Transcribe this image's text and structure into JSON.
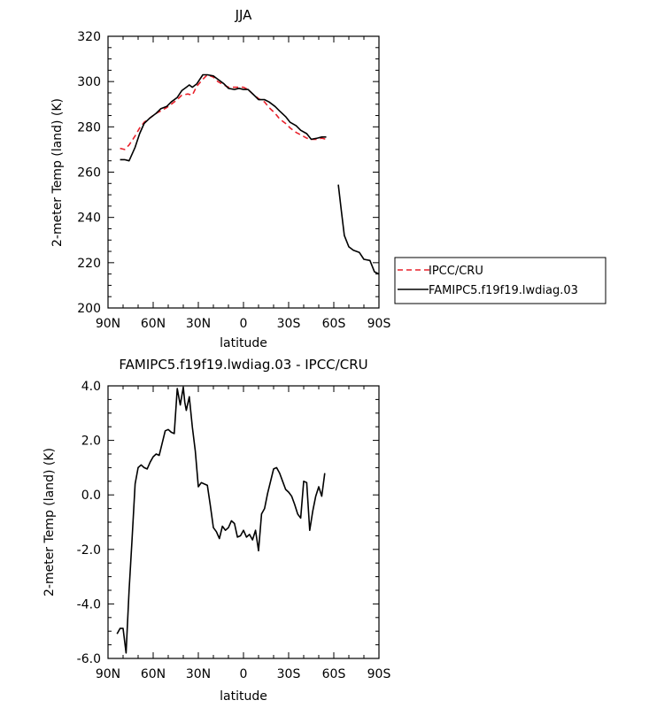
{
  "chart_data": [
    {
      "type": "line",
      "title": "JJA",
      "xlabel": "latitude",
      "ylabel": "2-meter Temp (land) (K)",
      "xlim": [
        90,
        -90
      ],
      "ylim": [
        200,
        320
      ],
      "x_ticks": [
        90,
        60,
        30,
        0,
        -30,
        -60,
        -90
      ],
      "x_tick_labels": [
        "90N",
        "60N",
        "30N",
        "0",
        "30S",
        "60S",
        "90S"
      ],
      "y_ticks": [
        200,
        220,
        240,
        260,
        280,
        300,
        320
      ],
      "y_tick_labels": [
        "200",
        "220",
        "240",
        "260",
        "280",
        "300",
        "320"
      ],
      "legend_position": "outside-right",
      "series": [
        {
          "name": "IPCC/CRU",
          "style": "dashed",
          "color": "#e8202a",
          "x": [
            82,
            79,
            76,
            72,
            69,
            66,
            62,
            58,
            55,
            51,
            48,
            44,
            41,
            37,
            34,
            31,
            27,
            24,
            20,
            17,
            13,
            10,
            6,
            3,
            0,
            -3,
            -7,
            -10,
            -14,
            -17,
            -21,
            -24,
            -28,
            -31,
            -35,
            -38,
            -42,
            -45,
            -49,
            -52,
            -55
          ],
          "y": [
            270.5,
            270,
            272,
            276,
            279.5,
            282,
            284,
            286,
            287,
            288.5,
            290,
            292,
            294,
            294.5,
            294,
            298,
            301,
            303,
            302,
            300,
            298.5,
            297.5,
            297.5,
            297.5,
            297.5,
            296.5,
            294,
            292.5,
            291,
            288.5,
            286,
            283.5,
            281.5,
            279.5,
            277.5,
            276.5,
            275,
            274.5,
            274.5,
            275,
            274.5
          ]
        },
        {
          "name": "FAMIPC5.f19f19.lwdiag.03",
          "style": "solid",
          "color": "#000000",
          "x": [
            82,
            79,
            76,
            72,
            69,
            66,
            62,
            58,
            55,
            51,
            48,
            44,
            41,
            38,
            36,
            34,
            31,
            27,
            24,
            20,
            17,
            13,
            10,
            6,
            3,
            0,
            -3,
            -7,
            -10,
            -14,
            -17,
            -21,
            -24,
            -28,
            -31,
            -35,
            -38,
            -42,
            -45,
            -49,
            -52,
            -55,
            null,
            -63,
            -65,
            -67,
            -70,
            -73,
            -77,
            -80,
            -84,
            -87,
            -90
          ],
          "y": [
            265.5,
            265.5,
            265,
            271,
            277,
            281.5,
            284,
            286,
            288,
            289,
            291,
            293,
            296,
            297.5,
            298.5,
            297.5,
            299,
            303,
            303,
            302.5,
            301,
            299,
            297,
            296.5,
            297,
            296.5,
            296.5,
            294,
            292,
            292,
            291,
            289,
            287,
            284.5,
            282,
            280.5,
            278.5,
            277,
            274.5,
            275,
            275.5,
            275.5,
            null,
            254.5,
            243,
            232,
            227,
            225.5,
            224.5,
            221.5,
            221,
            216,
            215
          ]
        }
      ]
    },
    {
      "type": "line",
      "title": "FAMIPC5.f19f19.lwdiag.03 - IPCC/CRU",
      "xlabel": "latitude",
      "ylabel": "2-meter Temp (land) (K)",
      "xlim": [
        90,
        -90
      ],
      "ylim": [
        -6,
        4
      ],
      "x_ticks": [
        90,
        60,
        30,
        0,
        -30,
        -60,
        -90
      ],
      "x_tick_labels": [
        "90N",
        "60N",
        "30N",
        "0",
        "30S",
        "60S",
        "90S"
      ],
      "y_ticks": [
        -6,
        -4,
        -2,
        0,
        2,
        4
      ],
      "y_tick_labels": [
        "-6.0",
        "-4.0",
        "-2.0",
        "0.0",
        "2.0",
        "4.0"
      ],
      "series": [
        {
          "style": "solid",
          "color": "#000000",
          "x": [
            84,
            82,
            80,
            78,
            76,
            74,
            72,
            70,
            68,
            66,
            64,
            62,
            60,
            58,
            56,
            54,
            52,
            50,
            48,
            46,
            44,
            42,
            40,
            39,
            38,
            36,
            34,
            32,
            30,
            28,
            26,
            24,
            22,
            20,
            18,
            16,
            14,
            12,
            10,
            8,
            6,
            4,
            2,
            0,
            -2,
            -4,
            -6,
            -8,
            -10,
            -12,
            -14,
            -16,
            -18,
            -20,
            -22,
            -24,
            -26,
            -28,
            -30,
            -32,
            -34,
            -36,
            -38,
            -40,
            -42,
            -44,
            -46,
            -48,
            -50,
            -52,
            -54
          ],
          "y": [
            -5.1,
            -4.9,
            -4.9,
            -5.8,
            -3.5,
            -1.6,
            0.4,
            1.0,
            1.1,
            1.0,
            0.95,
            1.2,
            1.4,
            1.5,
            1.45,
            1.9,
            2.35,
            2.4,
            2.3,
            2.25,
            3.9,
            3.3,
            3.95,
            3.4,
            3.1,
            3.6,
            2.5,
            1.6,
            0.3,
            0.45,
            0.4,
            0.35,
            -0.4,
            -1.2,
            -1.35,
            -1.6,
            -1.15,
            -1.3,
            -1.2,
            -0.95,
            -1.05,
            -1.55,
            -1.5,
            -1.3,
            -1.55,
            -1.45,
            -1.65,
            -1.3,
            -2.05,
            -0.7,
            -0.5,
            0.05,
            0.5,
            0.95,
            1.0,
            0.8,
            0.5,
            0.2,
            0.1,
            -0.05,
            -0.35,
            -0.7,
            -0.85,
            0.5,
            0.45,
            -1.3,
            -0.6,
            -0.05,
            0.3,
            -0.05,
            0.8
          ]
        }
      ]
    }
  ]
}
